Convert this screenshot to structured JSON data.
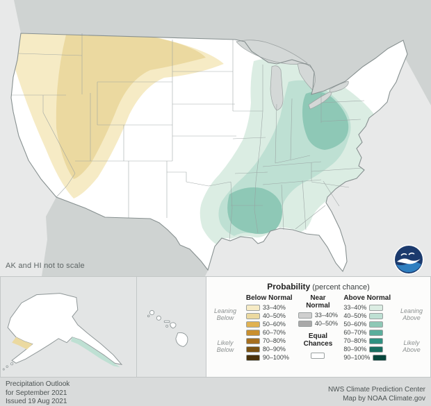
{
  "palette": {
    "below": [
      "#F6EBC5",
      "#EBD9A0",
      "#E0B252",
      "#C98F2E",
      "#A66F1F",
      "#7A5213",
      "#4A320B"
    ],
    "near": [
      "#CFCFCF",
      "#A8A8A8"
    ],
    "above": [
      "#DBEDE3",
      "#BEE0D3",
      "#8EC8B6",
      "#5BAE9C",
      "#2F9181",
      "#186E60",
      "#07463C"
    ],
    "equal": "#FFFFFF"
  },
  "map": {
    "note": "AK and HI not to scale",
    "fills": {
      "ocean": "#E8E9E9",
      "land": "#CFD3D2",
      "lake": "#D4D8D7",
      "us": "#FFFFFF",
      "below_outer": "#F6EBC5",
      "below_mid": "#EBD9A0",
      "above_outer": "#DBEDE3",
      "above_mid": "#BEE0D3",
      "above_core": "#8EC8B6"
    }
  },
  "legend": {
    "title": "Probability",
    "title_note": " (percent chance)",
    "below_header": "Below Normal",
    "near_header": "Near Normal",
    "above_header": "Above Normal",
    "equal_label": "Equal Chances",
    "ranges7": [
      "33–40%",
      "40–50%",
      "50–60%",
      "60–70%",
      "70–80%",
      "80–90%",
      "90–100%"
    ],
    "ranges2": [
      "33–40%",
      "40–50%"
    ],
    "side": {
      "leaning_below": "Leaning Below",
      "likely_below": "Likely Below",
      "leaning_above": "Leaning Above",
      "likely_above": "Likely Above"
    }
  },
  "footer": {
    "left": [
      "Precipitation Outlook",
      "for September 2021",
      "Issued 19 Aug 2021"
    ],
    "right": [
      "NWS Climate Prediction Center",
      "Map by NOAA Climate.gov"
    ]
  },
  "logo": {
    "label": "NOAA"
  }
}
